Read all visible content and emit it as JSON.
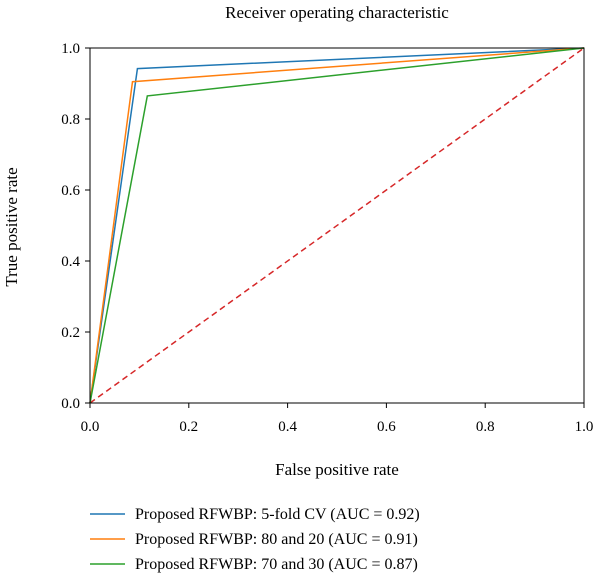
{
  "chart_data": {
    "type": "line",
    "title": "Receiver operating characteristic",
    "xlabel": "False positive rate",
    "ylabel": "True positive rate",
    "xlim": [
      0.0,
      1.0
    ],
    "ylim": [
      0.0,
      1.0
    ],
    "x_ticks": [
      "0.0",
      "0.2",
      "0.4",
      "0.6",
      "0.8",
      "1.0"
    ],
    "y_ticks": [
      "0.0",
      "0.2",
      "0.4",
      "0.6",
      "0.8",
      "1.0"
    ],
    "grid": false,
    "legend_position": "bottom",
    "series": [
      {
        "name": "Proposed RFWBP: 5-fold CV (AUC = 0.92)",
        "color": "#1f77b4",
        "x": [
          0.0,
          0.096,
          1.0
        ],
        "y": [
          0.0,
          0.942,
          1.0
        ]
      },
      {
        "name": "Proposed RFWBP: 80 and 20 (AUC = 0.91)",
        "color": "#ff7f0e",
        "x": [
          0.0,
          0.086,
          1.0
        ],
        "y": [
          0.0,
          0.905,
          1.0
        ]
      },
      {
        "name": "Proposed RFWBP: 70 and 30 (AUC = 0.87)",
        "color": "#2ca02c",
        "x": [
          0.0,
          0.116,
          1.0
        ],
        "y": [
          0.0,
          0.865,
          1.0
        ]
      }
    ],
    "reference_line": {
      "color": "#d62728",
      "style": "dashed",
      "x": [
        0.0,
        1.0
      ],
      "y": [
        0.0,
        1.0
      ]
    }
  }
}
